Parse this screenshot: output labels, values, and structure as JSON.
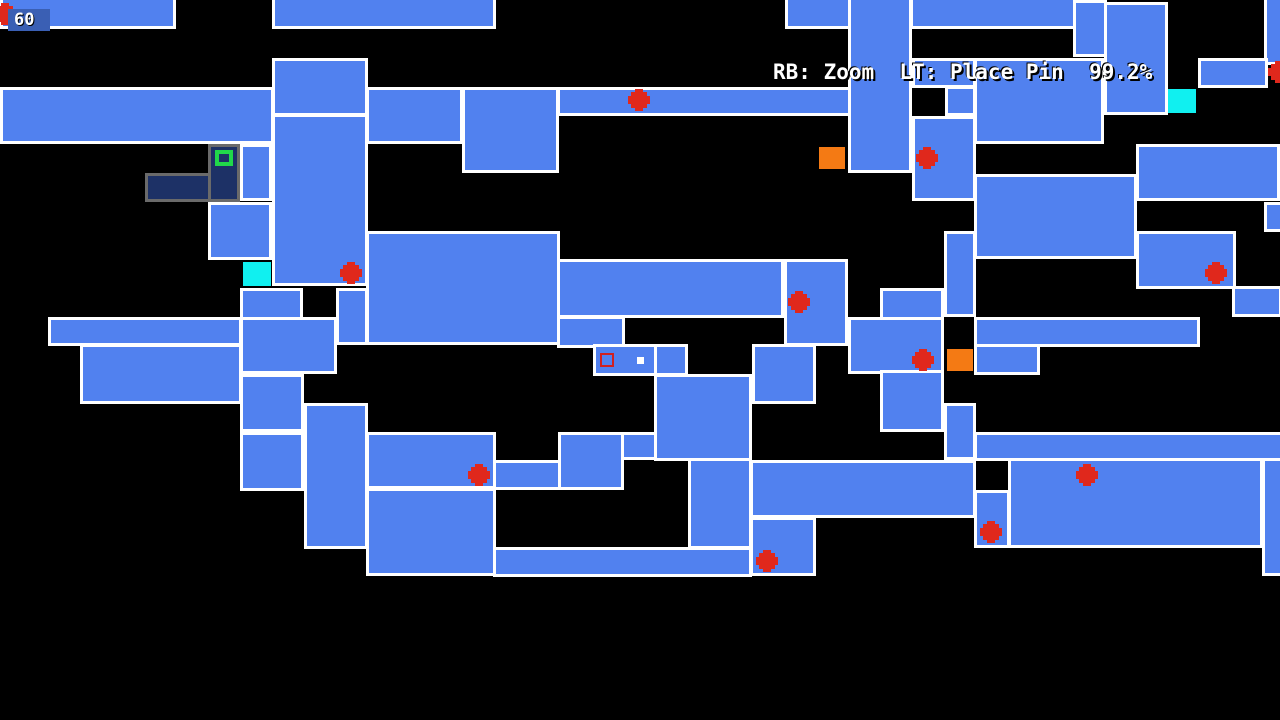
{
  "hud": {
    "fps": "60",
    "controls_hint": "RB: Zoom  LT: Place Pin",
    "completion": "99.2%"
  },
  "colors": {
    "room": "#5181ef",
    "room_border": "#ffffff",
    "unexplored_room": "#1d3166",
    "player_marker": "#21d84a",
    "boss_marker": "#e0281c",
    "save_marker": "#f47a14",
    "warp_marker": "#10f0f0",
    "background": "#000000"
  },
  "legend_icons": [
    "red-cross-marker-icon",
    "orange-square-marker-icon",
    "cyan-square-marker-icon",
    "player-position-icon",
    "pin-marker-icon"
  ]
}
